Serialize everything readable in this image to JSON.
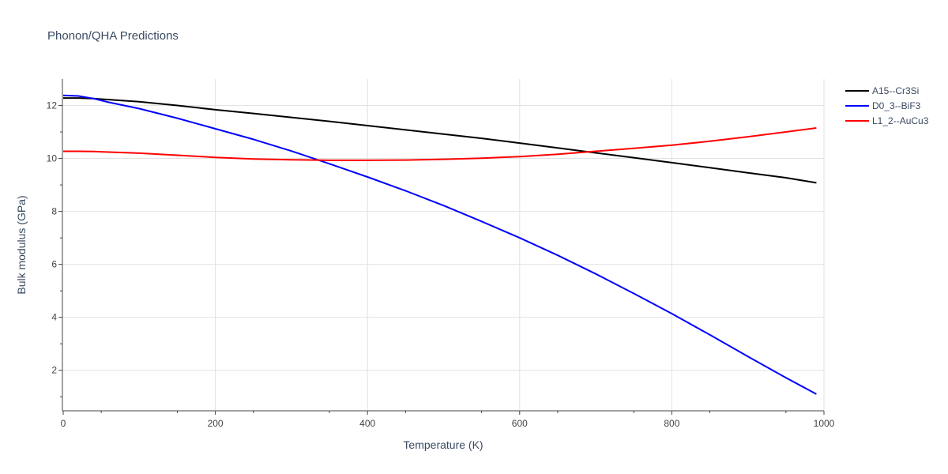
{
  "chart_data": {
    "type": "line",
    "title": "Phonon/QHA Predictions",
    "xlabel": "Temperature (K)",
    "ylabel": "Bulk modulus (GPa)",
    "xlim": [
      0,
      1000
    ],
    "ylim": [
      0.5,
      13
    ],
    "x_ticks": [
      0,
      200,
      400,
      600,
      800,
      1000
    ],
    "x_tick_labels": [
      "0",
      "200",
      "400",
      "600",
      "800",
      "1000"
    ],
    "y_ticks": [
      2,
      4,
      6,
      8,
      10,
      12
    ],
    "y_tick_labels": [
      "2",
      "4",
      "6",
      "8",
      "10",
      "12"
    ],
    "grid": true,
    "legend_position": "top-right",
    "series": [
      {
        "name": "A15--Cr3Si",
        "color": "#000000",
        "x": [
          0,
          20,
          40,
          60,
          100,
          150,
          200,
          250,
          300,
          350,
          400,
          450,
          500,
          550,
          600,
          650,
          700,
          750,
          800,
          850,
          900,
          950,
          990
        ],
        "y": [
          12.28,
          12.28,
          12.26,
          12.22,
          12.14,
          12.0,
          11.84,
          11.7,
          11.55,
          11.4,
          11.24,
          11.08,
          10.92,
          10.76,
          10.58,
          10.4,
          10.21,
          10.03,
          9.84,
          9.65,
          9.46,
          9.27,
          9.08
        ]
      },
      {
        "name": "D0_3--BiF3",
        "color": "#0000ff",
        "x": [
          0,
          20,
          40,
          60,
          100,
          150,
          200,
          250,
          300,
          350,
          400,
          450,
          500,
          550,
          600,
          650,
          700,
          750,
          800,
          850,
          900,
          950,
          990
        ],
        "y": [
          12.38,
          12.36,
          12.26,
          12.12,
          11.88,
          11.52,
          11.12,
          10.72,
          10.28,
          9.8,
          9.3,
          8.78,
          8.22,
          7.62,
          7.0,
          6.34,
          5.64,
          4.9,
          4.14,
          3.34,
          2.52,
          1.72,
          1.1
        ]
      },
      {
        "name": "L1_2--AuCu3",
        "color": "#ff0000",
        "x": [
          0,
          20,
          40,
          60,
          100,
          150,
          200,
          250,
          300,
          350,
          400,
          450,
          500,
          550,
          600,
          650,
          700,
          750,
          800,
          850,
          900,
          950,
          990
        ],
        "y": [
          10.27,
          10.27,
          10.26,
          10.24,
          10.2,
          10.12,
          10.04,
          9.98,
          9.95,
          9.93,
          9.93,
          9.94,
          9.97,
          10.01,
          10.07,
          10.16,
          10.27,
          10.38,
          10.5,
          10.65,
          10.82,
          11.0,
          11.15
        ]
      }
    ]
  }
}
